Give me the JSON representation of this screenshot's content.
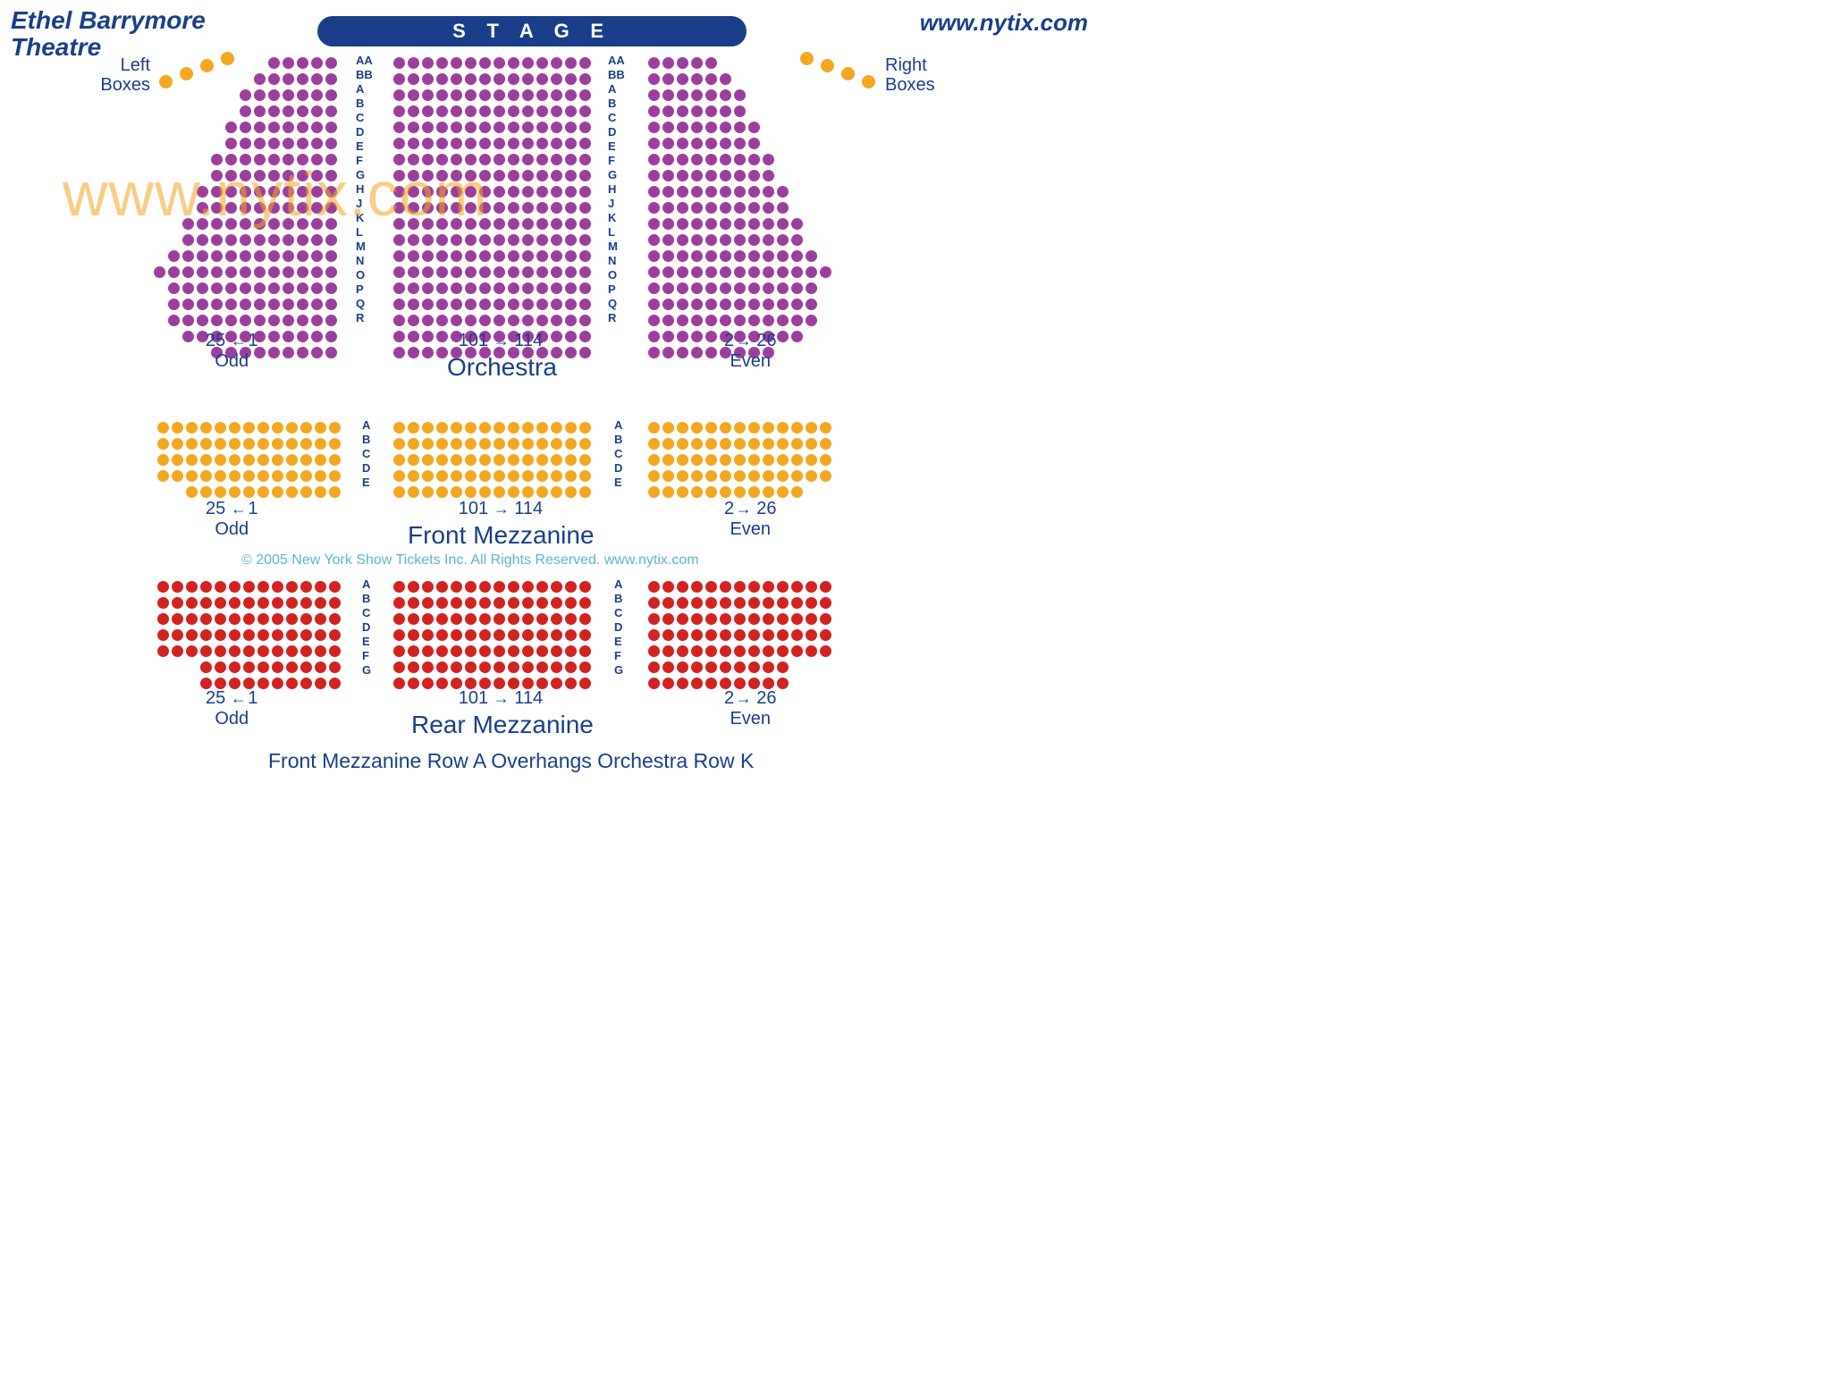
{
  "colors": {
    "blue_text": "#1a3f8a",
    "blue_pill": "#1a3f8a",
    "lt_blue": "#5db3d4",
    "purple": "#9c3f9c",
    "orange": "#f5a623",
    "red": "#d32222",
    "white": "#ffffff"
  },
  "fonts": {
    "title_size": 28,
    "url_size": 26,
    "stage_size": 22,
    "section_label_size": 26,
    "side_label_size": 20
  },
  "header": {
    "theatre_name_line1": "Ethel Barrymore",
    "theatre_name_line2": "Theatre",
    "url": "www.nytix.com",
    "stage_label": "S T A G E"
  },
  "box_labels": {
    "left": "Left\nBoxes",
    "right": "Right\nBoxes"
  },
  "orchestra": {
    "name": "Orchestra",
    "row_letters": [
      "AA",
      "BB",
      "A",
      "B",
      "C",
      "D",
      "E",
      "F",
      "G",
      "H",
      "J",
      "K",
      "L",
      "M",
      "N",
      "O",
      "P",
      "Q",
      "R"
    ],
    "left_label_from": "25",
    "left_label_to": "1",
    "left_sub": "Odd",
    "center_label_from": "101",
    "center_label_to": "114",
    "right_label_from": "2",
    "right_label_to": "26",
    "right_sub": "Even",
    "left_shape": [
      5,
      6,
      7,
      7,
      8,
      8,
      9,
      9,
      10,
      10,
      11,
      11,
      12,
      13,
      12,
      12,
      12,
      11,
      9
    ],
    "left_max": 13,
    "center_shape": [
      14,
      14,
      14,
      14,
      14,
      14,
      14,
      14,
      14,
      14,
      14,
      14,
      14,
      14,
      14,
      14,
      14,
      14,
      14
    ],
    "right_shape": [
      5,
      6,
      7,
      7,
      8,
      8,
      9,
      9,
      10,
      10,
      11,
      11,
      12,
      13,
      12,
      12,
      12,
      11,
      9
    ]
  },
  "front_mezz": {
    "name": "Front Mezzanine",
    "row_letters": [
      "A",
      "B",
      "C",
      "D",
      "E"
    ],
    "left_shape": [
      13,
      13,
      13,
      13,
      11
    ],
    "left_max": 13,
    "center_shape": [
      14,
      14,
      14,
      14,
      14
    ],
    "right_shape": [
      13,
      13,
      13,
      13,
      11
    ],
    "left_label_from": "25",
    "left_label_to": "1",
    "left_sub": "Odd",
    "center_label_from": "101",
    "center_label_to": "114",
    "right_label_from": "2",
    "right_label_to": "26",
    "right_sub": "Even"
  },
  "rear_mezz": {
    "name": "Rear Mezzanine",
    "row_letters": [
      "A",
      "B",
      "C",
      "D",
      "E",
      "F",
      "G"
    ],
    "left_shape": [
      13,
      13,
      13,
      13,
      13,
      10,
      10
    ],
    "left_max": 13,
    "center_shape": [
      14,
      14,
      14,
      14,
      14,
      14,
      14
    ],
    "right_shape": [
      13,
      13,
      13,
      13,
      13,
      10,
      10
    ],
    "left_label_from": "25",
    "left_label_to": "1",
    "left_sub": "Odd",
    "center_label_from": "101",
    "center_label_to": "114",
    "right_label_from": "2",
    "right_label_to": "26",
    "right_sub": "Even"
  },
  "copyright_text": "© 2005 New York Show Tickets Inc. All Rights Reserved.    www.nytix.com",
  "footer_note": "Front Mezzanine Row A Overhangs Orchestra Row K",
  "watermark": "www.nytix.com"
}
